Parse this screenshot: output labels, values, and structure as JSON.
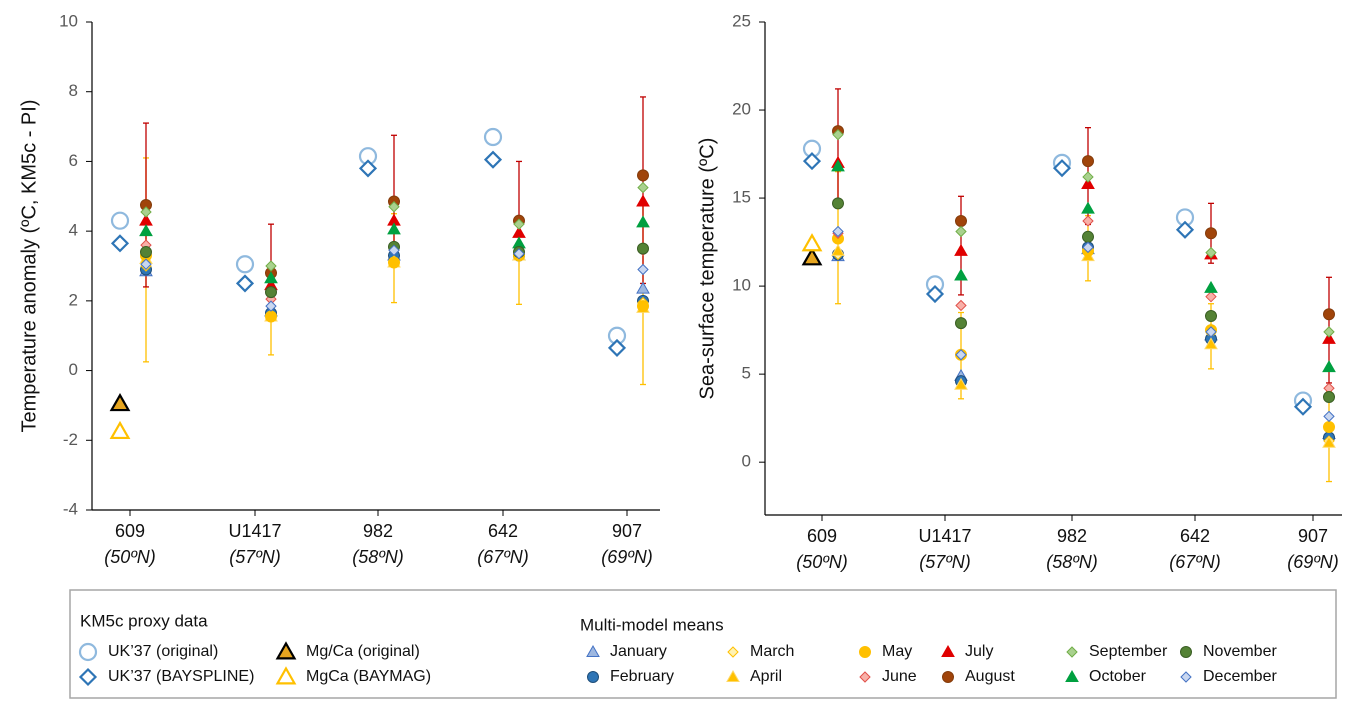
{
  "chart_data": [
    {
      "type": "scatter",
      "y_label": "Temperature anomaly (ºC, KM5c - PI)",
      "categories": [
        "609",
        "U1417",
        "982",
        "642",
        "907"
      ],
      "category_notes": [
        "(50ºN)",
        "(57ºN)",
        "(58ºN)",
        "(67ºN)",
        "(69ºN)"
      ],
      "ylim": [
        -4,
        10
      ],
      "yticks": [
        -4,
        -2,
        0,
        2,
        4,
        6,
        8,
        10
      ],
      "series": [
        {
          "name": "UK’37 (original)",
          "group": "proxy",
          "marker": "circle",
          "color": "#ffffff",
          "edge": "#8fb9de",
          "values": [
            4.3,
            3.05,
            6.15,
            6.7,
            1.0
          ]
        },
        {
          "name": "UK’37 (BAYSPLINE)",
          "group": "proxy",
          "marker": "diamond",
          "color": "#ffffff",
          "edge": "#2e75b6",
          "values": [
            3.65,
            2.5,
            5.8,
            6.05,
            0.65
          ]
        },
        {
          "name": "Mg/Ca (original)",
          "group": "proxy",
          "marker": "triangle",
          "color": "#e6a520",
          "edge": "#000000",
          "values": [
            -0.95,
            null,
            null,
            null,
            null
          ]
        },
        {
          "name": "MgCa (BAYMAG)",
          "group": "proxy",
          "marker": "triangle",
          "color": "#ffffff",
          "edge": "#ffc000",
          "values": [
            -1.75,
            null,
            null,
            null,
            null
          ]
        },
        {
          "name": "January",
          "group": "model",
          "marker": "triangle",
          "color": "#9db7e0",
          "edge": "#4472c4",
          "values": [
            2.85,
            1.7,
            3.3,
            3.3,
            2.35
          ]
        },
        {
          "name": "February",
          "group": "model",
          "marker": "circle",
          "color": "#2e75b6",
          "edge": "#1f4e79",
          "values": [
            2.9,
            1.65,
            3.3,
            3.3,
            2.0
          ]
        },
        {
          "name": "March",
          "group": "model",
          "marker": "diamond",
          "color": "#fff2b3",
          "edge": "#ffc000",
          "values": [
            3.0,
            1.6,
            3.15,
            3.3,
            1.95
          ]
        },
        {
          "name": "April",
          "group": "model",
          "marker": "triangle",
          "color": "#ffc000",
          "edge": "#ffd966",
          "values": [
            3.2,
            1.55,
            3.1,
            3.3,
            1.8
          ]
        },
        {
          "name": "May",
          "group": "model",
          "marker": "circle",
          "color": "#ffc000",
          "edge": "#ffc000",
          "values": [
            3.3,
            1.55,
            3.1,
            3.3,
            1.85
          ],
          "range_low": [
            0.25,
            0.45,
            1.95,
            1.9,
            -0.4
          ],
          "range_high": [
            6.1,
            2.8,
            4.5,
            4.2,
            4.8
          ],
          "range_color": "#ffc000"
        },
        {
          "name": "June",
          "group": "model",
          "marker": "diamond",
          "color": "#f8b0a8",
          "edge": "#e0504a",
          "values": [
            3.6,
            2.05,
            3.55,
            3.45,
            3.45
          ]
        },
        {
          "name": "July",
          "group": "model",
          "marker": "triangle",
          "color": "#e00000",
          "edge": "#e00000",
          "values": [
            4.3,
            2.45,
            4.3,
            3.95,
            4.85
          ]
        },
        {
          "name": "August",
          "group": "model",
          "marker": "circle",
          "color": "#a0440a",
          "edge": "#843c0c",
          "values": [
            4.75,
            2.8,
            4.85,
            4.3,
            5.6
          ],
          "range_low": [
            2.4,
            1.8,
            3.0,
            3.2,
            2.5
          ],
          "range_high": [
            7.1,
            4.2,
            6.75,
            6.0,
            7.85
          ],
          "range_color": "#c00000"
        },
        {
          "name": "September",
          "group": "model",
          "marker": "diamond",
          "color": "#a9d18e",
          "edge": "#70ad47",
          "values": [
            4.55,
            3.0,
            4.7,
            4.2,
            5.25
          ]
        },
        {
          "name": "October",
          "group": "model",
          "marker": "triangle",
          "color": "#00a040",
          "edge": "#00a040",
          "values": [
            4.0,
            2.65,
            4.05,
            3.65,
            4.25
          ]
        },
        {
          "name": "November",
          "group": "model",
          "marker": "circle",
          "color": "#548235",
          "edge": "#3a5e24",
          "values": [
            3.4,
            2.25,
            3.55,
            3.4,
            3.5
          ]
        },
        {
          "name": "December",
          "group": "model",
          "marker": "diamond",
          "color": "#c9d7f0",
          "edge": "#4472c4",
          "values": [
            3.05,
            1.85,
            3.45,
            3.35,
            2.9
          ]
        }
      ]
    },
    {
      "type": "scatter",
      "y_label": "Sea-surface temperature (ºC)",
      "categories": [
        "609",
        "U1417",
        "982",
        "642",
        "907"
      ],
      "category_notes": [
        "(50ºN)",
        "(57ºN)",
        "(58ºN)",
        "(67ºN)",
        "(69ºN)"
      ],
      "ylim": [
        -3,
        25
      ],
      "yticks": [
        0,
        5,
        10,
        15,
        20,
        25
      ],
      "series": [
        {
          "values": [
            17.8,
            10.1,
            17.0,
            13.9,
            3.5
          ]
        },
        {
          "values": [
            17.1,
            9.55,
            16.7,
            13.2,
            3.15
          ]
        },
        {
          "values": [
            11.6,
            null,
            null,
            null,
            null
          ]
        },
        {
          "values": [
            12.4,
            null,
            null,
            null,
            null
          ]
        },
        {
          "values": [
            11.7,
            4.9,
            12.1,
            7.2,
            1.6
          ]
        },
        {
          "values": [
            11.8,
            4.6,
            12.2,
            7.0,
            1.4
          ]
        },
        {
          "values": [
            11.8,
            6.1,
            12.0,
            7.5,
            1.2
          ]
        },
        {
          "values": [
            12.0,
            4.4,
            11.7,
            6.7,
            1.1
          ]
        },
        {
          "values": [
            12.7,
            6.1,
            12.0,
            7.5,
            2.0
          ],
          "range_low": [
            9.0,
            3.6,
            10.3,
            5.3,
            -1.1
          ],
          "range_high": [
            16.5,
            8.5,
            14.0,
            9.0,
            4.0
          ]
        },
        {
          "values": [
            13.0,
            8.9,
            13.7,
            9.4,
            4.2
          ]
        },
        {
          "values": [
            17.0,
            12.0,
            15.8,
            11.8,
            7.0
          ]
        },
        {
          "values": [
            18.8,
            13.7,
            17.1,
            13.0,
            8.4
          ],
          "range_low": [
            14.5,
            9.5,
            13.5,
            11.3,
            4.5
          ],
          "range_high": [
            21.2,
            15.1,
            19.0,
            14.7,
            10.5
          ]
        },
        {
          "values": [
            18.6,
            13.1,
            16.2,
            11.9,
            7.4
          ]
        },
        {
          "values": [
            16.8,
            10.6,
            14.4,
            9.9,
            5.4
          ]
        },
        {
          "values": [
            14.7,
            7.9,
            12.8,
            8.3,
            3.7
          ]
        },
        {
          "values": [
            13.1,
            6.1,
            12.2,
            7.4,
            2.6
          ]
        }
      ]
    }
  ],
  "legend": {
    "titles": [
      "KM5c proxy data",
      "Multi-model means"
    ]
  }
}
